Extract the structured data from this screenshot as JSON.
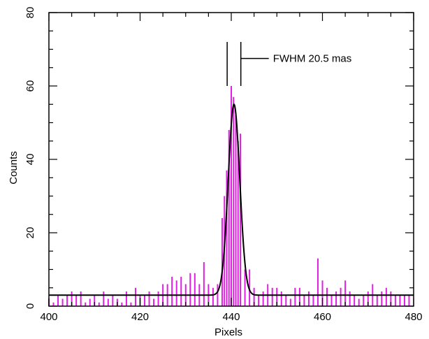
{
  "chart_data": {
    "type": "bar",
    "xlabel": "Pixels",
    "ylabel": "Counts",
    "xlim": [
      400,
      480
    ],
    "ylim": [
      0,
      80
    ],
    "x_ticks": [
      400,
      420,
      440,
      460,
      480
    ],
    "y_ticks": [
      0,
      20,
      40,
      60,
      80
    ],
    "grid": false,
    "colors": {
      "data": "#e020e0",
      "fit": "#000000",
      "axes": "#000000"
    },
    "series": [
      {
        "kind": "histogram",
        "x": [
          400,
          401,
          402,
          403,
          404,
          405,
          406,
          407,
          408,
          409,
          410,
          411,
          412,
          413,
          414,
          415,
          416,
          417,
          418,
          419,
          420,
          421,
          422,
          423,
          424,
          425,
          426,
          427,
          428,
          429,
          430,
          431,
          432,
          433,
          434,
          435,
          436,
          437,
          438,
          438.5,
          439,
          439.5,
          440,
          440.5,
          441,
          441.5,
          442,
          443,
          444,
          445,
          446,
          447,
          448,
          449,
          450,
          451,
          452,
          453,
          454,
          455,
          456,
          457,
          458,
          459,
          460,
          461,
          462,
          463,
          464,
          465,
          466,
          467,
          468,
          469,
          470,
          471,
          472,
          473,
          474,
          475,
          476,
          477,
          478,
          479
        ],
        "values": [
          2,
          1,
          3,
          2,
          3,
          4,
          3,
          4,
          1,
          2,
          3,
          1,
          4,
          2,
          3,
          2,
          1,
          4,
          1,
          5,
          3,
          3,
          4,
          2,
          4,
          6,
          6,
          8,
          7,
          8,
          6,
          9,
          9,
          6,
          12,
          6,
          5,
          6,
          24,
          30,
          37,
          48,
          60,
          57,
          52,
          45,
          47,
          10,
          10,
          5,
          3,
          4,
          6,
          5,
          5,
          4,
          3,
          2,
          5,
          5,
          3,
          4,
          3,
          13,
          7,
          5,
          3,
          4,
          5,
          7,
          4,
          3,
          2,
          3,
          4,
          6,
          3,
          4,
          5,
          4,
          3,
          3,
          3,
          3
        ]
      },
      {
        "kind": "gaussian-fit",
        "amplitude": 52,
        "center": 440.6,
        "sigma": 1.27,
        "baseline": 3
      }
    ],
    "annotations": [
      {
        "text": "FWHM 20.5 mas",
        "x_left": 439.1,
        "x_right": 442.1,
        "y_top": 72,
        "y_bottom": 60
      }
    ]
  }
}
